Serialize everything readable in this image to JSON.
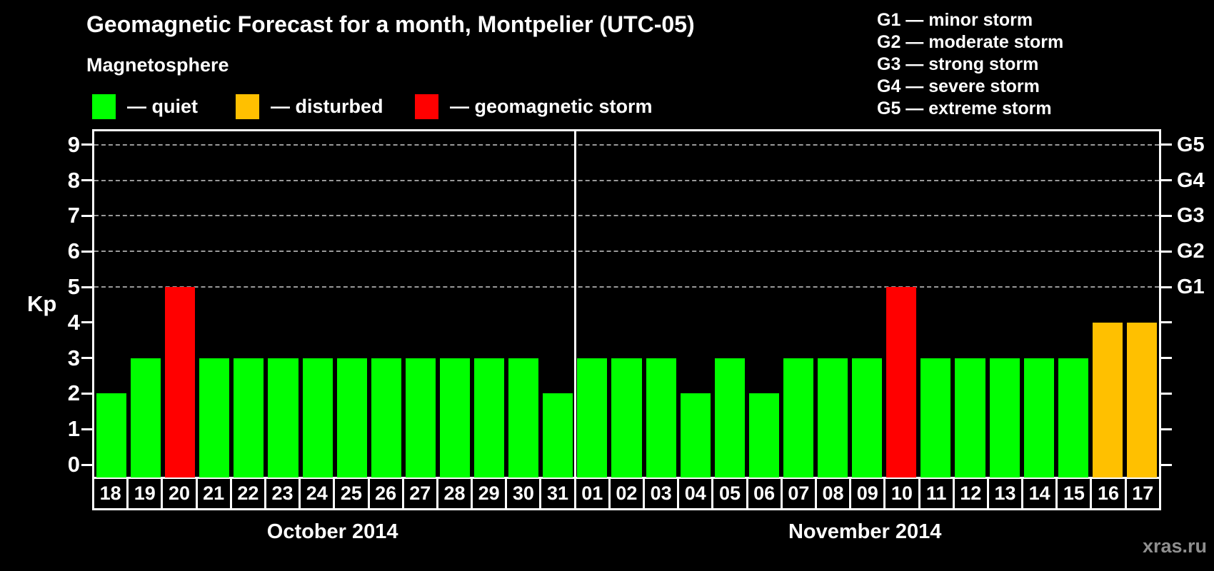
{
  "title": "Geomagnetic Forecast for a month, Montpelier (UTC-05)",
  "subtitle": "Magnetosphere",
  "legend": {
    "items": [
      {
        "key": "quiet",
        "label": "— quiet",
        "color": "#00ff00"
      },
      {
        "key": "disturbed",
        "label": "— disturbed",
        "color": "#ffc000"
      },
      {
        "key": "storm",
        "label": "— geomagnetic storm",
        "color": "#ff0000"
      }
    ]
  },
  "g_legend": {
    "lines": [
      "G1 — minor storm",
      "G2 — moderate storm",
      "G3 — strong storm",
      "G4 — severe storm",
      "G5 — extreme storm"
    ]
  },
  "watermark": "xras.ru",
  "colors": {
    "background": "#000000",
    "axis": "#ffffff",
    "gridline": "#999999",
    "text": "#ffffff",
    "watermark": "#8f8f8f"
  },
  "chart_data": {
    "type": "bar",
    "title": "Geomagnetic Forecast for a month, Montpelier (UTC-05)",
    "ylabel": "Kp",
    "ylim": [
      0,
      9
    ],
    "y_ticks": [
      0,
      1,
      2,
      3,
      4,
      5,
      6,
      7,
      8,
      9
    ],
    "gridlines_at_kp": [
      5,
      6,
      7,
      8,
      9
    ],
    "grid": "dashed horizontal lines at storm levels only",
    "legend_position": "top-left",
    "right_axis_labels": [
      {
        "label": "G1",
        "kp": 5
      },
      {
        "label": "G2",
        "kp": 6
      },
      {
        "label": "G3",
        "kp": 7
      },
      {
        "label": "G4",
        "kp": 8
      },
      {
        "label": "G5",
        "kp": 9
      }
    ],
    "months": [
      {
        "label": "October 2014",
        "days": [
          "18",
          "19",
          "20",
          "21",
          "22",
          "23",
          "24",
          "25",
          "26",
          "27",
          "28",
          "29",
          "30",
          "31"
        ],
        "kp_values": [
          2,
          3,
          5,
          3,
          3,
          3,
          3,
          3,
          3,
          3,
          3,
          3,
          3,
          2
        ],
        "statuses": [
          "quiet",
          "quiet",
          "storm",
          "quiet",
          "quiet",
          "quiet",
          "quiet",
          "quiet",
          "quiet",
          "quiet",
          "quiet",
          "quiet",
          "quiet",
          "quiet"
        ]
      },
      {
        "label": "November 2014",
        "days": [
          "01",
          "02",
          "03",
          "04",
          "05",
          "06",
          "07",
          "08",
          "09",
          "10",
          "11",
          "12",
          "13",
          "14",
          "15",
          "16",
          "17"
        ],
        "kp_values": [
          3,
          3,
          3,
          2,
          3,
          2,
          3,
          3,
          3,
          5,
          3,
          3,
          3,
          3,
          3,
          4,
          4
        ],
        "statuses": [
          "quiet",
          "quiet",
          "quiet",
          "quiet",
          "quiet",
          "quiet",
          "quiet",
          "quiet",
          "quiet",
          "storm",
          "quiet",
          "quiet",
          "quiet",
          "quiet",
          "quiet",
          "disturbed",
          "disturbed"
        ]
      }
    ]
  }
}
